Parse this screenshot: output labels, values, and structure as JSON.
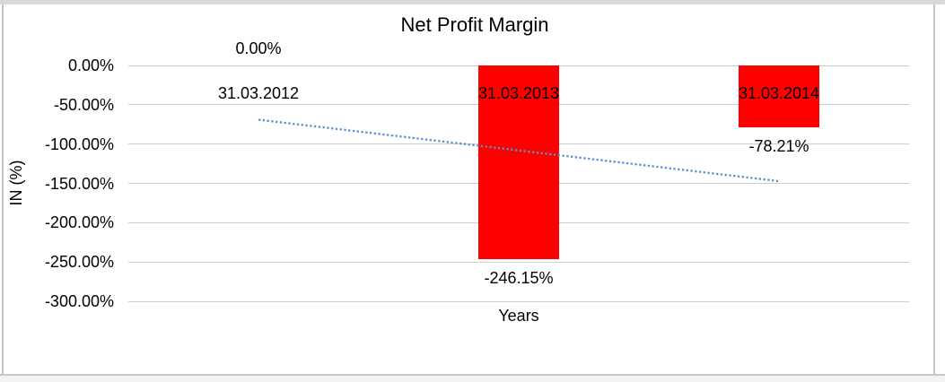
{
  "chart_data": {
    "type": "bar",
    "title": "Net Profit Margin",
    "xlabel": "Years",
    "ylabel": "IN (%)",
    "categories": [
      "31.03.2012",
      "31.03.2013",
      "31.03.2014"
    ],
    "values": [
      0,
      -246.15,
      -78.21
    ],
    "data_labels": [
      "0.00%",
      "-246.15%",
      "-78.21%"
    ],
    "yticks": [
      {
        "value": 0,
        "label": "0.00%"
      },
      {
        "value": -50,
        "label": "-50.00%"
      },
      {
        "value": -100,
        "label": "-100.00%"
      },
      {
        "value": -150,
        "label": "-150.00%"
      },
      {
        "value": -200,
        "label": "-200.00%"
      },
      {
        "value": -250,
        "label": "-250.00%"
      },
      {
        "value": -300,
        "label": "-300.00%"
      }
    ],
    "ylim": [
      -300,
      0
    ],
    "grid": true,
    "legend": "none",
    "trendline": {
      "type": "linear",
      "style": "dotted",
      "start_value": -69.0,
      "end_value": -147.2
    },
    "colors": {
      "bar": "#ff0000",
      "trendline": "#5b8fce",
      "gridline": "#cdcdcd",
      "text": "#000000",
      "frame_band": "#d8d8d8",
      "frame_edge": "#c6c6c6"
    }
  }
}
